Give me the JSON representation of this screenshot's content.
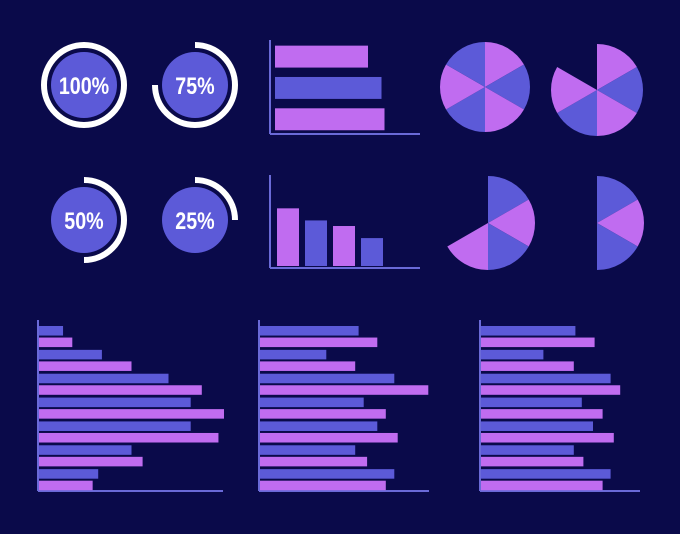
{
  "chart_data": [
    {
      "type": "gauge",
      "values": [
        100,
        75,
        50,
        25
      ],
      "value_labels": [
        "100%",
        "75%",
        "50%",
        "25%"
      ],
      "color": "#5c5ad8",
      "ring_color": "#ffffff"
    },
    {
      "type": "bar",
      "orientation": "horizontal",
      "values": [
        62,
        71,
        73
      ],
      "colors": [
        "#c06cf0",
        "#5c5ad8",
        "#c06cf0"
      ],
      "xlim": [
        0,
        100
      ]
    },
    {
      "type": "bar",
      "orientation": "vertical",
      "values": [
        62,
        49,
        43,
        30
      ],
      "colors": [
        "#c06cf0",
        "#5c5ad8",
        "#c06cf0",
        "#5c5ad8"
      ],
      "ylim": [
        0,
        100
      ]
    },
    {
      "type": "pie",
      "values": [
        60,
        60,
        60,
        60,
        60,
        60
      ],
      "colors": [
        "#c06cf0",
        "#5c5ad8",
        "#c06cf0",
        "#5c5ad8",
        "#c06cf0",
        "#5c5ad8"
      ]
    },
    {
      "type": "pie",
      "values": [
        60,
        60,
        60,
        60,
        60
      ],
      "colors": [
        "#c06cf0",
        "#5c5ad8",
        "#c06cf0",
        "#5c5ad8",
        "#c06cf0"
      ]
    },
    {
      "type": "pie",
      "values": [
        60,
        60,
        60,
        60
      ],
      "colors": [
        "#5c5ad8",
        "#c06cf0",
        "#5c5ad8",
        "#c06cf0"
      ]
    },
    {
      "type": "pie",
      "values": [
        60,
        60,
        60
      ],
      "colors": [
        "#5c5ad8",
        "#c06cf0",
        "#5c5ad8"
      ]
    },
    {
      "type": "grouped_bar",
      "xlim": [
        0,
        100
      ],
      "series": [
        {
          "color": "#5c5ad8",
          "values": [
            13,
            34,
            70,
            82,
            82,
            50,
            32
          ]
        },
        {
          "color": "#c06cf0",
          "values": [
            18,
            50,
            88,
            100,
            97,
            56,
            29
          ]
        }
      ]
    },
    {
      "type": "grouped_bar",
      "xlim": [
        0,
        100
      ],
      "series": [
        {
          "color": "#5c5ad8",
          "values": [
            58,
            39,
            79,
            61,
            69,
            56,
            79
          ]
        },
        {
          "color": "#c06cf0",
          "values": [
            69,
            56,
            99,
            74,
            81,
            63,
            74
          ]
        }
      ]
    },
    {
      "type": "grouped_bar",
      "xlim": [
        0,
        100
      ],
      "series": [
        {
          "color": "#5c5ad8",
          "values": [
            59,
            39,
            81,
            63,
            70,
            58,
            81
          ]
        },
        {
          "color": "#c06cf0",
          "values": [
            71,
            58,
            87,
            76,
            83,
            64,
            76
          ]
        }
      ]
    }
  ]
}
